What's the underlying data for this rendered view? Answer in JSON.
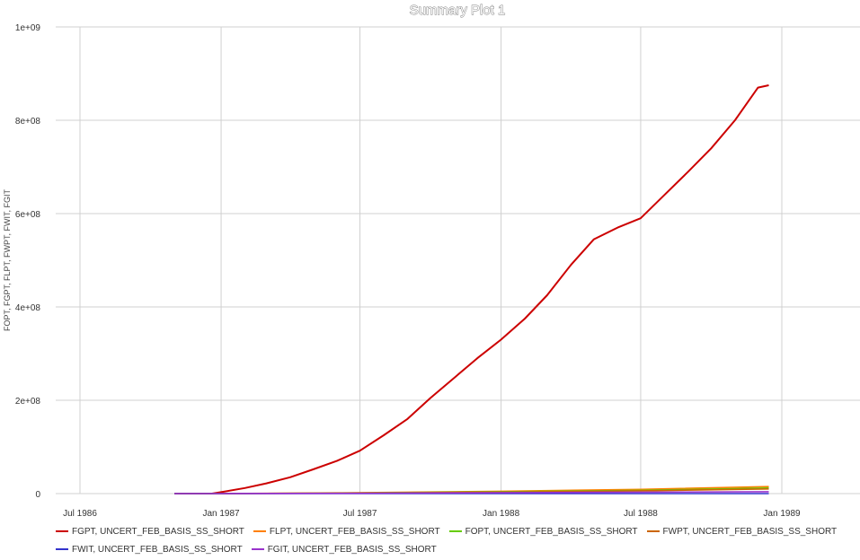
{
  "chart_data": {
    "type": "line",
    "title": "Summary Plot 1",
    "ylabel": "FOPT, FGPT, FLPT, FWPT, FWIT, FGIT",
    "xlabel": "",
    "x_ticks": [
      "Jul 1986",
      "Jan 1987",
      "Jul 1987",
      "Jan 1988",
      "Jul 1988",
      "Jan 1989"
    ],
    "y_ticks": [
      "0",
      "2e+08",
      "4e+08",
      "6e+08",
      "8e+08",
      "1e+09"
    ],
    "xlim": [
      "1986-07-01",
      "1989-03-01"
    ],
    "ylim": [
      0,
      1000000000
    ],
    "grid": true,
    "legend_position": "bottom",
    "series": [
      {
        "name": "FGPT, UNCERT_FEB_BASIS_SS_SHORT",
        "color": "#cc0000",
        "points": [
          [
            "1986-11-01",
            0
          ],
          [
            "1986-12-20",
            0
          ],
          [
            "1987-01-01",
            3000000
          ],
          [
            "1987-02-01",
            12000000
          ],
          [
            "1987-03-01",
            22000000
          ],
          [
            "1987-04-01",
            35000000
          ],
          [
            "1987-05-01",
            52000000
          ],
          [
            "1987-06-01",
            70000000
          ],
          [
            "1987-07-01",
            92000000
          ],
          [
            "1987-08-01",
            125000000
          ],
          [
            "1987-09-01",
            160000000
          ],
          [
            "1987-10-01",
            205000000
          ],
          [
            "1987-11-01",
            248000000
          ],
          [
            "1987-12-01",
            290000000
          ],
          [
            "1988-01-01",
            330000000
          ],
          [
            "1988-02-01",
            375000000
          ],
          [
            "1988-03-01",
            425000000
          ],
          [
            "1988-04-01",
            490000000
          ],
          [
            "1988-05-01",
            545000000
          ],
          [
            "1988-06-01",
            570000000
          ],
          [
            "1988-07-01",
            590000000
          ],
          [
            "1988-08-01",
            640000000
          ],
          [
            "1988-09-01",
            690000000
          ],
          [
            "1988-10-01",
            740000000
          ],
          [
            "1988-11-01",
            800000000
          ],
          [
            "1988-12-01",
            870000000
          ],
          [
            "1988-12-15",
            875000000
          ]
        ]
      },
      {
        "name": "FLPT, UNCERT_FEB_BASIS_SS_SHORT",
        "color": "#ff8000",
        "points": [
          [
            "1986-11-01",
            0
          ],
          [
            "1987-01-01",
            0
          ],
          [
            "1987-06-01",
            1500000
          ],
          [
            "1988-01-01",
            5000000
          ],
          [
            "1988-07-01",
            9000000
          ],
          [
            "1988-12-15",
            15000000
          ]
        ]
      },
      {
        "name": "FOPT, UNCERT_FEB_BASIS_SS_SHORT",
        "color": "#66cc00",
        "points": [
          [
            "1986-11-01",
            0
          ],
          [
            "1987-01-01",
            0
          ],
          [
            "1987-06-01",
            1000000
          ],
          [
            "1988-01-01",
            4000000
          ],
          [
            "1988-07-01",
            7000000
          ],
          [
            "1988-12-15",
            12000000
          ]
        ]
      },
      {
        "name": "FWPT, UNCERT_FEB_BASIS_SS_SHORT",
        "color": "#cc6600",
        "points": [
          [
            "1986-11-01",
            0
          ],
          [
            "1987-01-01",
            0
          ],
          [
            "1987-06-01",
            800000
          ],
          [
            "1988-01-01",
            3000000
          ],
          [
            "1988-07-01",
            6000000
          ],
          [
            "1988-12-15",
            10000000
          ]
        ]
      },
      {
        "name": "FWIT, UNCERT_FEB_BASIS_SS_SHORT",
        "color": "#3333cc",
        "points": [
          [
            "1986-11-01",
            0
          ],
          [
            "1988-12-15",
            0
          ]
        ]
      },
      {
        "name": "FGIT, UNCERT_FEB_BASIS_SS_SHORT",
        "color": "#9933cc",
        "points": [
          [
            "1986-11-01",
            0
          ],
          [
            "1987-01-01",
            0
          ],
          [
            "1987-06-01",
            500000
          ],
          [
            "1988-01-01",
            2000000
          ],
          [
            "1988-12-15",
            4000000
          ]
        ]
      }
    ]
  }
}
